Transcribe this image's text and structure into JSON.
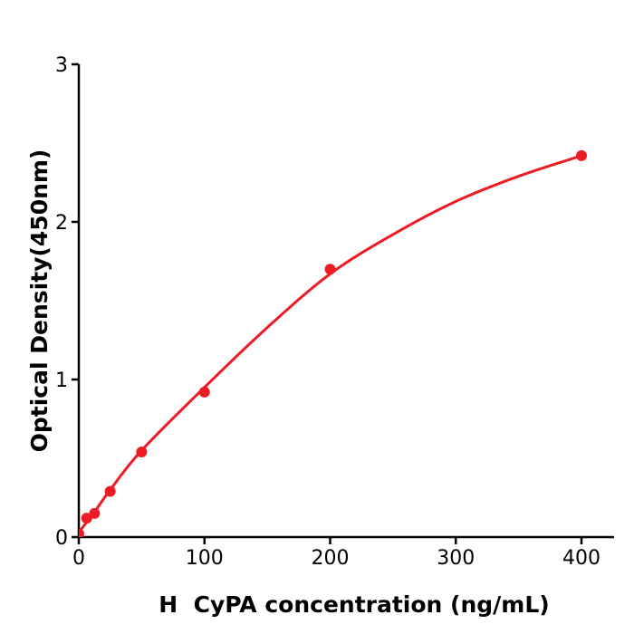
{
  "page": {
    "background": "#ffffff"
  },
  "chart_data": {
    "type": "scatter",
    "title": "",
    "xlabel": "H  CyPA concentration (ng/mL)",
    "ylabel": "Optical Density(450nm)",
    "x_ticks": [
      0,
      100,
      200,
      300,
      400
    ],
    "y_ticks": [
      0,
      1,
      2,
      3
    ],
    "xlim": [
      0,
      426
    ],
    "ylim": [
      0,
      3
    ],
    "grid": false,
    "legend_position": "none",
    "series": [
      {
        "name": "standard-points",
        "type": "scatter",
        "x": [
          0,
          6.25,
          12.5,
          25,
          50,
          100,
          200,
          400
        ],
        "y": [
          0.02,
          0.12,
          0.15,
          0.29,
          0.54,
          0.92,
          1.7,
          2.42
        ]
      },
      {
        "name": "fit-curve",
        "type": "line",
        "x": [
          0,
          12.5,
          25,
          50,
          100,
          150,
          200,
          250,
          300,
          350,
          400
        ],
        "y": [
          0.03,
          0.16,
          0.3,
          0.55,
          0.95,
          1.33,
          1.67,
          1.92,
          2.13,
          2.29,
          2.42
        ]
      }
    ],
    "colors": {
      "points": "#ed1c24",
      "curve": "#ed1c24",
      "axis": "#000000",
      "text": "#000000"
    }
  }
}
